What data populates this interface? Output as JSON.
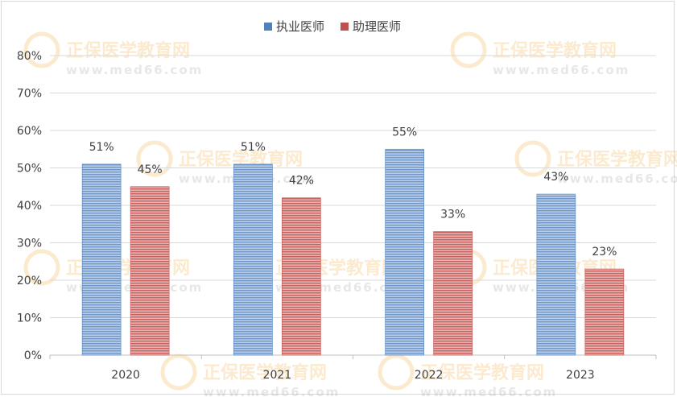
{
  "chart_data": {
    "type": "bar",
    "categories": [
      "2020",
      "2021",
      "2022",
      "2023"
    ],
    "series": [
      {
        "name": "执业医师",
        "values": [
          51,
          51,
          55,
          43
        ],
        "labels": [
          "51%",
          "51%",
          "55%",
          "43%"
        ],
        "color": "#4f81bd"
      },
      {
        "name": "助理医师",
        "values": [
          45,
          42,
          33,
          23
        ],
        "labels": [
          "45%",
          "42%",
          "33%",
          "23%"
        ],
        "color": "#c0504d"
      }
    ],
    "y_ticks": [
      "0%",
      "10%",
      "20%",
      "30%",
      "40%",
      "50%",
      "60%",
      "70%",
      "80%"
    ],
    "ylim": [
      0,
      80
    ],
    "legend_position": "top",
    "grid": true
  },
  "watermark": {
    "brand": "正保医学教育网",
    "url": "www.med66.com"
  }
}
